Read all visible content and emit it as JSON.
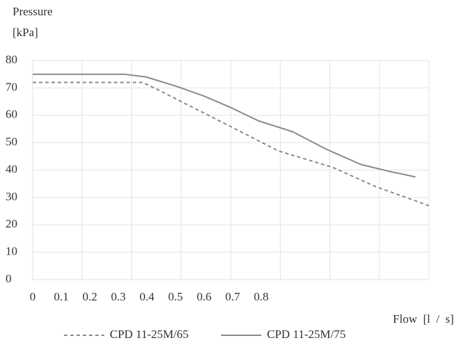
{
  "chart_data": {
    "type": "line",
    "y_label": "Pressure",
    "y_unit": "[kPa]",
    "x_label": "Flow  [l  /  s]",
    "xlim": [
      0,
      1.387
    ],
    "xticks": [
      0,
      0.1,
      0.2,
      0.3,
      0.4,
      0.5,
      0.6,
      0.7,
      0.8
    ],
    "ylim": [
      0,
      80
    ],
    "yticks": [
      0,
      10,
      20,
      30,
      40,
      50,
      60,
      70,
      80
    ],
    "grid": true,
    "legend": "bottom",
    "series": [
      {
        "name": "CPD 11-25M/65",
        "color": "#8a8a8a",
        "dash": true,
        "x": [
          0,
          0.385,
          0.445,
          0.52,
          0.615,
          0.71,
          0.86,
          1.05,
          1.2,
          1.387
        ],
        "values": [
          72,
          72,
          69,
          65,
          60,
          55,
          47,
          41,
          34,
          27
        ]
      },
      {
        "name": "CPD 11-25M/75",
        "color": "#8a8a8a",
        "dash": false,
        "x": [
          0,
          0.32,
          0.397,
          0.506,
          0.6,
          0.69,
          0.79,
          0.91,
          1.03,
          1.15,
          1.25,
          1.34
        ],
        "values": [
          75,
          75,
          74,
          70.5,
          67,
          63,
          58,
          54,
          47.5,
          42,
          39.5,
          37.5
        ]
      }
    ]
  }
}
